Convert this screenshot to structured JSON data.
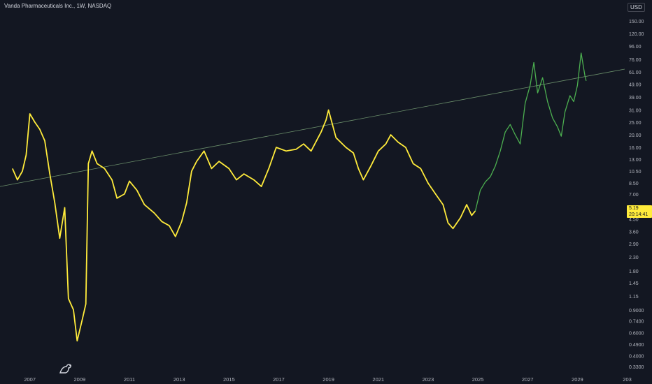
{
  "header": {
    "title": "Vanda Pharmaceuticals Inc., 1W, NASDAQ",
    "currency": "USD"
  },
  "last_price": {
    "value": "5.19",
    "countdown": "20:14:41"
  },
  "colors": {
    "background": "#131722",
    "history_line": "#ffeb3b",
    "projection_line": "#4caf50",
    "trend_line": "#6b8f6b",
    "axis_text": "#b2b5be"
  },
  "chart_data": {
    "type": "line",
    "y_scale": "log",
    "ylim": [
      0.31,
      170
    ],
    "xlim": [
      2005.8,
      2030.9
    ],
    "x_ticks": [
      "2007",
      "2009",
      "2011",
      "2013",
      "2015",
      "2017",
      "2019",
      "2021",
      "2023",
      "2025",
      "2027",
      "2029",
      "203"
    ],
    "y_ticks": [
      "150.00",
      "120.00",
      "96.00",
      "76.00",
      "61.00",
      "49.00",
      "39.00",
      "31.00",
      "25.00",
      "20.00",
      "16.00",
      "13.00",
      "10.50",
      "8.50",
      "7.00",
      "5.60",
      "4.50",
      "3.60",
      "2.90",
      "2.30",
      "1.80",
      "1.45",
      "1.15",
      "0.9000",
      "0.7400",
      "0.6000",
      "0.4900",
      "0.4000",
      "0.3300"
    ],
    "y_tick_values": [
      150,
      120,
      96,
      76,
      61,
      49,
      39,
      31,
      25,
      20,
      16,
      13,
      10.5,
      8.5,
      7,
      5.6,
      4.5,
      3.6,
      2.9,
      2.3,
      1.8,
      1.45,
      1.15,
      0.9,
      0.74,
      0.6,
      0.49,
      0.4,
      0.33
    ],
    "series": [
      {
        "points": [
          [
            2006.3,
            11.0
          ],
          [
            2006.5,
            9.0
          ],
          [
            2006.7,
            10.5
          ],
          [
            2006.85,
            14.0
          ],
          [
            2007.0,
            29.0
          ],
          [
            2007.2,
            25.0
          ],
          [
            2007.4,
            22.0
          ],
          [
            2007.6,
            18.0
          ],
          [
            2007.8,
            10.0
          ],
          [
            2008.0,
            6.0
          ],
          [
            2008.2,
            3.2
          ],
          [
            2008.4,
            5.5
          ],
          [
            2008.55,
            1.1
          ],
          [
            2008.75,
            0.9
          ],
          [
            2008.9,
            0.52
          ],
          [
            2009.1,
            0.75
          ],
          [
            2009.25,
            1.0
          ],
          [
            2009.35,
            12.0
          ],
          [
            2009.5,
            15.0
          ],
          [
            2009.7,
            12.0
          ],
          [
            2010.0,
            11.0
          ],
          [
            2010.3,
            9.0
          ],
          [
            2010.5,
            6.5
          ],
          [
            2010.8,
            7.0
          ],
          [
            2011.0,
            8.8
          ],
          [
            2011.3,
            7.5
          ],
          [
            2011.6,
            5.8
          ],
          [
            2012.0,
            5.0
          ],
          [
            2012.3,
            4.3
          ],
          [
            2012.6,
            4.0
          ],
          [
            2012.85,
            3.3
          ],
          [
            2013.1,
            4.3
          ],
          [
            2013.3,
            6.0
          ],
          [
            2013.5,
            10.5
          ],
          [
            2013.7,
            12.5
          ],
          [
            2014.0,
            15.0
          ],
          [
            2014.3,
            11.0
          ],
          [
            2014.6,
            12.5
          ],
          [
            2015.0,
            11.0
          ],
          [
            2015.3,
            9.0
          ],
          [
            2015.6,
            10.0
          ],
          [
            2016.0,
            9.0
          ],
          [
            2016.3,
            8.0
          ],
          [
            2016.6,
            11.0
          ],
          [
            2016.9,
            16.0
          ],
          [
            2017.3,
            15.0
          ],
          [
            2017.7,
            15.5
          ],
          [
            2018.0,
            17.0
          ],
          [
            2018.3,
            15.0
          ],
          [
            2018.7,
            21.0
          ],
          [
            2018.9,
            26.0
          ],
          [
            2019.0,
            31.0
          ],
          [
            2019.3,
            19.0
          ],
          [
            2019.7,
            16.0
          ],
          [
            2020.0,
            14.5
          ],
          [
            2020.2,
            11.0
          ],
          [
            2020.4,
            9.0
          ],
          [
            2020.7,
            11.5
          ],
          [
            2021.0,
            15.0
          ],
          [
            2021.3,
            17.0
          ],
          [
            2021.5,
            20.0
          ],
          [
            2021.8,
            17.5
          ],
          [
            2022.1,
            16.0
          ],
          [
            2022.4,
            12.0
          ],
          [
            2022.7,
            11.0
          ],
          [
            2023.0,
            8.5
          ],
          [
            2023.3,
            7.0
          ],
          [
            2023.6,
            5.8
          ],
          [
            2023.8,
            4.2
          ],
          [
            2024.0,
            3.8
          ],
          [
            2024.3,
            4.6
          ],
          [
            2024.55,
            5.8
          ],
          [
            2024.75,
            4.8
          ],
          [
            2024.9,
            5.19
          ]
        ]
      },
      {
        "points": [
          [
            2024.9,
            5.19
          ],
          [
            2025.1,
            7.5
          ],
          [
            2025.3,
            8.7
          ],
          [
            2025.5,
            9.5
          ],
          [
            2025.7,
            11.5
          ],
          [
            2025.9,
            15.0
          ],
          [
            2026.1,
            21.0
          ],
          [
            2026.3,
            24.0
          ],
          [
            2026.5,
            20.0
          ],
          [
            2026.7,
            17.0
          ],
          [
            2026.9,
            35.0
          ],
          [
            2027.1,
            48.0
          ],
          [
            2027.25,
            72.0
          ],
          [
            2027.4,
            42.0
          ],
          [
            2027.6,
            55.0
          ],
          [
            2027.8,
            36.0
          ],
          [
            2028.0,
            27.0
          ],
          [
            2028.2,
            23.0
          ],
          [
            2028.35,
            19.5
          ],
          [
            2028.5,
            30.0
          ],
          [
            2028.7,
            40.0
          ],
          [
            2028.85,
            36.0
          ],
          [
            2029.0,
            48.0
          ],
          [
            2029.15,
            85.0
          ],
          [
            2029.3,
            57.0
          ],
          [
            2029.35,
            52.0
          ]
        ]
      }
    ],
    "trend_line": [
      [
        2005.8,
        8.0
      ],
      [
        2030.9,
        64.0
      ]
    ],
    "grid": false,
    "legend": "none"
  }
}
